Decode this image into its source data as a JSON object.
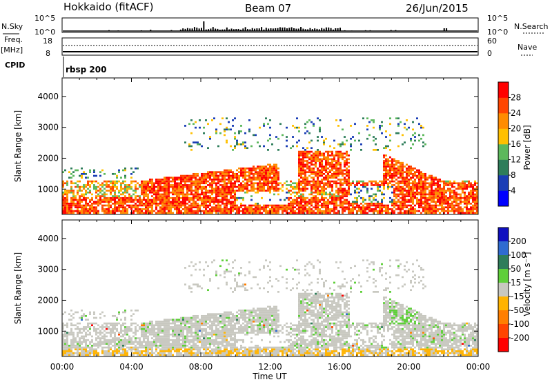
{
  "header": {
    "station": "Hokkaido (fitACF)",
    "beam": "Beam 07",
    "date": "26/Jun/2015"
  },
  "labels": {
    "nsky": "N.Sky",
    "nsky_t1": "10^5",
    "nsky_t0": "10^0",
    "nsearch": "N.Search",
    "freq": "Freq.",
    "mhz": "[MHz]",
    "freq_18": "18",
    "freq_8": "8",
    "nave_60": "60",
    "nave_0": "0",
    "nave": "Nave",
    "cpid": "CPID",
    "cpid_value": "rbsp 200"
  },
  "chart_data": [
    {
      "type": "heatmap",
      "name": "power",
      "ylabel": "Slant Range [km]",
      "xlabel": "",
      "y_ticks": [
        "1000",
        "2000",
        "3000",
        "4000"
      ],
      "ylim": [
        180,
        4600
      ],
      "colorbar": {
        "label": "Power [dB]",
        "ticks": [
          "4",
          "8",
          "12",
          "16",
          "20",
          "24",
          "28"
        ],
        "range": [
          0,
          32
        ],
        "colors": [
          "#0000ff",
          "#1a3db5",
          "#2e7d5a",
          "#5cb85c",
          "#ffc000",
          "#ff8c00",
          "#ff4500",
          "#ff0000"
        ]
      }
    },
    {
      "type": "heatmap",
      "name": "velocity",
      "ylabel": "Slant Range [km]",
      "xlabel": "Time UT",
      "x_ticks": [
        "00:00",
        "04:00",
        "08:00",
        "12:00",
        "16:00",
        "20:00",
        "00:00"
      ],
      "y_ticks": [
        "1000",
        "2000",
        "3000",
        "4000"
      ],
      "ylim": [
        180,
        4600
      ],
      "colorbar": {
        "label": "Velocity [m s⁻¹]",
        "ticks": [
          "200",
          "100",
          "50",
          "15",
          "-15",
          "-50",
          "-100",
          "-200"
        ],
        "colors": [
          "#1010c0",
          "#2f6bd0",
          "#2e7d5a",
          "#5fcf3a",
          "#c8c8c0",
          "#ffb300",
          "#ff7f00",
          "#ff4500",
          "#ff0000"
        ]
      }
    }
  ]
}
